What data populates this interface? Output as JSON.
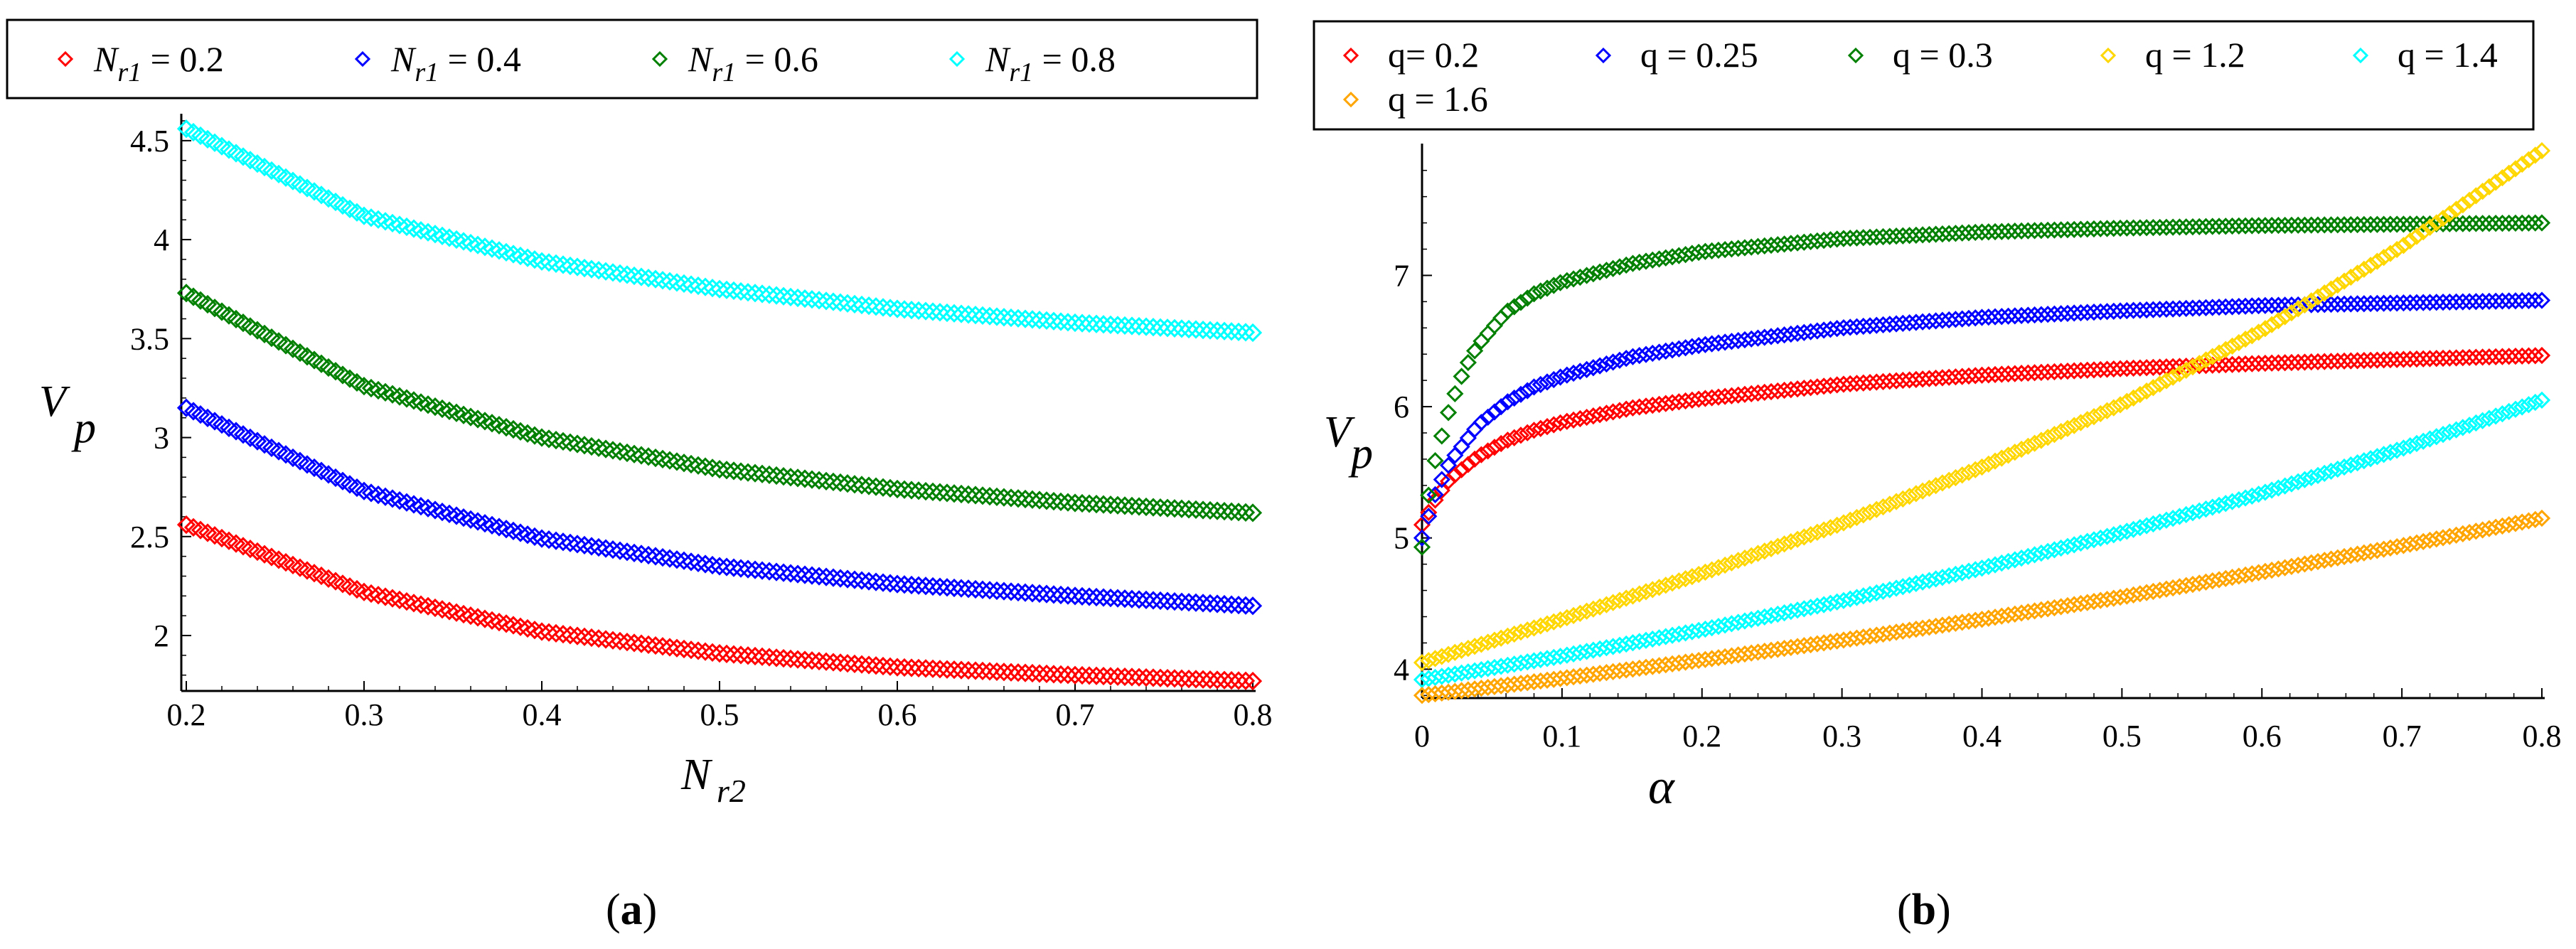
{
  "figure": {
    "caption_a": {
      "open": "(",
      "letter": "a",
      "close": ")"
    },
    "caption_b": {
      "open": "(",
      "letter": "b",
      "close": ")"
    }
  },
  "chart_data": [
    {
      "type": "scatter",
      "panel": "a",
      "ylabel": {
        "main": "V",
        "sub": "p"
      },
      "xlabel": {
        "main": "N",
        "sub": "r2"
      },
      "xlim": [
        0.2,
        0.8
      ],
      "ylim": [
        1.72,
        4.6
      ],
      "x_ticks": [
        0.2,
        0.3,
        0.4,
        0.5,
        0.6,
        0.7,
        0.8
      ],
      "x_tick_labels": [
        "0.2",
        "0.3",
        "0.4",
        "0.5",
        "0.6",
        "0.7",
        "0.8"
      ],
      "y_ticks": [
        2,
        2.5,
        3,
        3.5,
        4,
        4.5
      ],
      "y_tick_labels": [
        "2",
        "2.5",
        "3",
        "3.5",
        "4",
        "4.5"
      ],
      "legend_position": "top",
      "series": [
        {
          "name": "N_r1 = 0.2",
          "label_main": "N",
          "label_sub": "r1",
          "label_rest": " = 0.2",
          "color": "#ff0000",
          "x": [
            0.2,
            0.3,
            0.4,
            0.5,
            0.6,
            0.7,
            0.8
          ],
          "values": [
            2.56,
            2.22,
            2.02,
            1.91,
            1.84,
            1.8,
            1.77
          ]
        },
        {
          "name": "N_r1 = 0.4",
          "label_main": "N",
          "label_sub": "r1",
          "label_rest": " = 0.4",
          "color": "#0000ff",
          "x": [
            0.2,
            0.3,
            0.4,
            0.5,
            0.6,
            0.7,
            0.8
          ],
          "values": [
            3.15,
            2.73,
            2.49,
            2.35,
            2.26,
            2.2,
            2.15
          ]
        },
        {
          "name": "N_r1 = 0.6",
          "label_main": "N",
          "label_sub": "r1",
          "label_rest": " = 0.6",
          "color": "#008000",
          "x": [
            0.2,
            0.3,
            0.4,
            0.5,
            0.6,
            0.7,
            0.8
          ],
          "values": [
            3.73,
            3.26,
            3.0,
            2.84,
            2.74,
            2.67,
            2.62
          ]
        },
        {
          "name": "N_r1 = 0.8",
          "label_main": "N",
          "label_sub": "r1",
          "label_rest": " = 0.8",
          "color": "#00ffff",
          "x": [
            0.2,
            0.3,
            0.4,
            0.5,
            0.6,
            0.7,
            0.8
          ],
          "values": [
            4.56,
            4.12,
            3.89,
            3.75,
            3.65,
            3.58,
            3.53
          ]
        }
      ]
    },
    {
      "type": "scatter",
      "panel": "b",
      "ylabel": {
        "main": "V",
        "sub": "p"
      },
      "xlabel": {
        "main": "α",
        "sub": ""
      },
      "xlim": [
        0,
        0.8
      ],
      "ylim": [
        3.78,
        7.95
      ],
      "x_ticks": [
        0,
        0.1,
        0.2,
        0.3,
        0.4,
        0.5,
        0.6,
        0.7,
        0.8
      ],
      "x_tick_labels": [
        "0",
        "0.1",
        "0.2",
        "0.3",
        "0.4",
        "0.5",
        "0.6",
        "0.7",
        "0.8"
      ],
      "y_ticks": [
        4,
        5,
        6,
        7
      ],
      "y_tick_labels": [
        "4",
        "5",
        "6",
        "7"
      ],
      "legend_position": "top",
      "series": [
        {
          "name": "q= 0.2",
          "color": "#ff0000",
          "x": [
            0,
            0.01,
            0.02,
            0.04,
            0.06,
            0.08,
            0.1,
            0.15,
            0.2,
            0.3,
            0.4,
            0.5,
            0.6,
            0.7,
            0.8
          ],
          "values": [
            5.1,
            5.3,
            5.45,
            5.62,
            5.74,
            5.82,
            5.88,
            5.99,
            6.06,
            6.17,
            6.24,
            6.29,
            6.33,
            6.36,
            6.39
          ]
        },
        {
          "name": "q = 0.25",
          "color": "#0000ff",
          "x": [
            0,
            0.01,
            0.02,
            0.04,
            0.06,
            0.08,
            0.1,
            0.15,
            0.2,
            0.3,
            0.4,
            0.5,
            0.6,
            0.7,
            0.8
          ],
          "values": [
            5.0,
            5.35,
            5.58,
            5.86,
            6.03,
            6.15,
            6.23,
            6.38,
            6.47,
            6.6,
            6.68,
            6.73,
            6.77,
            6.79,
            6.81
          ]
        },
        {
          "name": "q = 0.3",
          "color": "#008000",
          "x": [
            0,
            0.005,
            0.01,
            0.02,
            0.03,
            0.04,
            0.06,
            0.08,
            0.1,
            0.15,
            0.2,
            0.3,
            0.4,
            0.5,
            0.6,
            0.7,
            0.8
          ],
          "values": [
            4.93,
            5.35,
            5.62,
            6.0,
            6.28,
            6.47,
            6.72,
            6.86,
            6.95,
            7.09,
            7.18,
            7.28,
            7.33,
            7.36,
            7.38,
            7.39,
            7.4
          ]
        },
        {
          "name": "q = 1.2",
          "color": "#ffd700",
          "x": [
            0,
            0.1,
            0.2,
            0.3,
            0.4,
            0.5,
            0.6,
            0.7,
            0.8
          ],
          "values": [
            4.05,
            4.38,
            4.73,
            5.11,
            5.54,
            6.02,
            6.58,
            7.22,
            7.95
          ]
        },
        {
          "name": "q = 1.4",
          "color": "#00ffff",
          "x": [
            0,
            0.1,
            0.2,
            0.3,
            0.4,
            0.5,
            0.6,
            0.7,
            0.8
          ],
          "values": [
            3.92,
            4.1,
            4.3,
            4.52,
            4.77,
            5.04,
            5.34,
            5.68,
            6.05
          ]
        },
        {
          "name": "q = 1.6",
          "color": "#ffa500",
          "x": [
            0,
            0.1,
            0.2,
            0.3,
            0.4,
            0.5,
            0.6,
            0.7,
            0.8
          ],
          "values": [
            3.8,
            3.93,
            4.07,
            4.22,
            4.38,
            4.55,
            4.74,
            4.94,
            5.15
          ]
        }
      ]
    }
  ]
}
